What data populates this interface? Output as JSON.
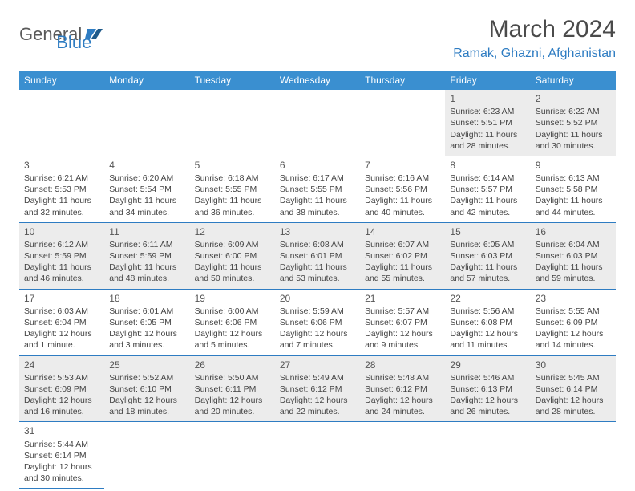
{
  "logo": {
    "text_general": "General",
    "text_blue": "Blue"
  },
  "header": {
    "month_title": "March 2024",
    "location": "Ramak, Ghazni, Afghanistan"
  },
  "colors": {
    "brand_blue": "#2e7cc2",
    "header_bg": "#3a8fd0",
    "row_alt": "#ececec",
    "text": "#444444"
  },
  "day_labels": [
    "Sunday",
    "Monday",
    "Tuesday",
    "Wednesday",
    "Thursday",
    "Friday",
    "Saturday"
  ],
  "weeks": [
    [
      null,
      null,
      null,
      null,
      null,
      {
        "day": "1",
        "sunrise": "Sunrise: 6:23 AM",
        "sunset": "Sunset: 5:51 PM",
        "daylight": "Daylight: 11 hours and 28 minutes."
      },
      {
        "day": "2",
        "sunrise": "Sunrise: 6:22 AM",
        "sunset": "Sunset: 5:52 PM",
        "daylight": "Daylight: 11 hours and 30 minutes."
      }
    ],
    [
      {
        "day": "3",
        "sunrise": "Sunrise: 6:21 AM",
        "sunset": "Sunset: 5:53 PM",
        "daylight": "Daylight: 11 hours and 32 minutes."
      },
      {
        "day": "4",
        "sunrise": "Sunrise: 6:20 AM",
        "sunset": "Sunset: 5:54 PM",
        "daylight": "Daylight: 11 hours and 34 minutes."
      },
      {
        "day": "5",
        "sunrise": "Sunrise: 6:18 AM",
        "sunset": "Sunset: 5:55 PM",
        "daylight": "Daylight: 11 hours and 36 minutes."
      },
      {
        "day": "6",
        "sunrise": "Sunrise: 6:17 AM",
        "sunset": "Sunset: 5:55 PM",
        "daylight": "Daylight: 11 hours and 38 minutes."
      },
      {
        "day": "7",
        "sunrise": "Sunrise: 6:16 AM",
        "sunset": "Sunset: 5:56 PM",
        "daylight": "Daylight: 11 hours and 40 minutes."
      },
      {
        "day": "8",
        "sunrise": "Sunrise: 6:14 AM",
        "sunset": "Sunset: 5:57 PM",
        "daylight": "Daylight: 11 hours and 42 minutes."
      },
      {
        "day": "9",
        "sunrise": "Sunrise: 6:13 AM",
        "sunset": "Sunset: 5:58 PM",
        "daylight": "Daylight: 11 hours and 44 minutes."
      }
    ],
    [
      {
        "day": "10",
        "sunrise": "Sunrise: 6:12 AM",
        "sunset": "Sunset: 5:59 PM",
        "daylight": "Daylight: 11 hours and 46 minutes."
      },
      {
        "day": "11",
        "sunrise": "Sunrise: 6:11 AM",
        "sunset": "Sunset: 5:59 PM",
        "daylight": "Daylight: 11 hours and 48 minutes."
      },
      {
        "day": "12",
        "sunrise": "Sunrise: 6:09 AM",
        "sunset": "Sunset: 6:00 PM",
        "daylight": "Daylight: 11 hours and 50 minutes."
      },
      {
        "day": "13",
        "sunrise": "Sunrise: 6:08 AM",
        "sunset": "Sunset: 6:01 PM",
        "daylight": "Daylight: 11 hours and 53 minutes."
      },
      {
        "day": "14",
        "sunrise": "Sunrise: 6:07 AM",
        "sunset": "Sunset: 6:02 PM",
        "daylight": "Daylight: 11 hours and 55 minutes."
      },
      {
        "day": "15",
        "sunrise": "Sunrise: 6:05 AM",
        "sunset": "Sunset: 6:03 PM",
        "daylight": "Daylight: 11 hours and 57 minutes."
      },
      {
        "day": "16",
        "sunrise": "Sunrise: 6:04 AM",
        "sunset": "Sunset: 6:03 PM",
        "daylight": "Daylight: 11 hours and 59 minutes."
      }
    ],
    [
      {
        "day": "17",
        "sunrise": "Sunrise: 6:03 AM",
        "sunset": "Sunset: 6:04 PM",
        "daylight": "Daylight: 12 hours and 1 minute."
      },
      {
        "day": "18",
        "sunrise": "Sunrise: 6:01 AM",
        "sunset": "Sunset: 6:05 PM",
        "daylight": "Daylight: 12 hours and 3 minutes."
      },
      {
        "day": "19",
        "sunrise": "Sunrise: 6:00 AM",
        "sunset": "Sunset: 6:06 PM",
        "daylight": "Daylight: 12 hours and 5 minutes."
      },
      {
        "day": "20",
        "sunrise": "Sunrise: 5:59 AM",
        "sunset": "Sunset: 6:06 PM",
        "daylight": "Daylight: 12 hours and 7 minutes."
      },
      {
        "day": "21",
        "sunrise": "Sunrise: 5:57 AM",
        "sunset": "Sunset: 6:07 PM",
        "daylight": "Daylight: 12 hours and 9 minutes."
      },
      {
        "day": "22",
        "sunrise": "Sunrise: 5:56 AM",
        "sunset": "Sunset: 6:08 PM",
        "daylight": "Daylight: 12 hours and 11 minutes."
      },
      {
        "day": "23",
        "sunrise": "Sunrise: 5:55 AM",
        "sunset": "Sunset: 6:09 PM",
        "daylight": "Daylight: 12 hours and 14 minutes."
      }
    ],
    [
      {
        "day": "24",
        "sunrise": "Sunrise: 5:53 AM",
        "sunset": "Sunset: 6:09 PM",
        "daylight": "Daylight: 12 hours and 16 minutes."
      },
      {
        "day": "25",
        "sunrise": "Sunrise: 5:52 AM",
        "sunset": "Sunset: 6:10 PM",
        "daylight": "Daylight: 12 hours and 18 minutes."
      },
      {
        "day": "26",
        "sunrise": "Sunrise: 5:50 AM",
        "sunset": "Sunset: 6:11 PM",
        "daylight": "Daylight: 12 hours and 20 minutes."
      },
      {
        "day": "27",
        "sunrise": "Sunrise: 5:49 AM",
        "sunset": "Sunset: 6:12 PM",
        "daylight": "Daylight: 12 hours and 22 minutes."
      },
      {
        "day": "28",
        "sunrise": "Sunrise: 5:48 AM",
        "sunset": "Sunset: 6:12 PM",
        "daylight": "Daylight: 12 hours and 24 minutes."
      },
      {
        "day": "29",
        "sunrise": "Sunrise: 5:46 AM",
        "sunset": "Sunset: 6:13 PM",
        "daylight": "Daylight: 12 hours and 26 minutes."
      },
      {
        "day": "30",
        "sunrise": "Sunrise: 5:45 AM",
        "sunset": "Sunset: 6:14 PM",
        "daylight": "Daylight: 12 hours and 28 minutes."
      }
    ],
    [
      {
        "day": "31",
        "sunrise": "Sunrise: 5:44 AM",
        "sunset": "Sunset: 6:14 PM",
        "daylight": "Daylight: 12 hours and 30 minutes."
      },
      null,
      null,
      null,
      null,
      null,
      null
    ]
  ]
}
